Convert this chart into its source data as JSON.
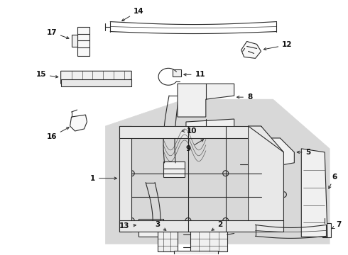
{
  "background_color": "#ffffff",
  "line_color": "#2a2a2a",
  "label_color": "#111111",
  "shaded_color": "#d8d8d8",
  "fig_width": 4.9,
  "fig_height": 3.6,
  "dpi": 100
}
